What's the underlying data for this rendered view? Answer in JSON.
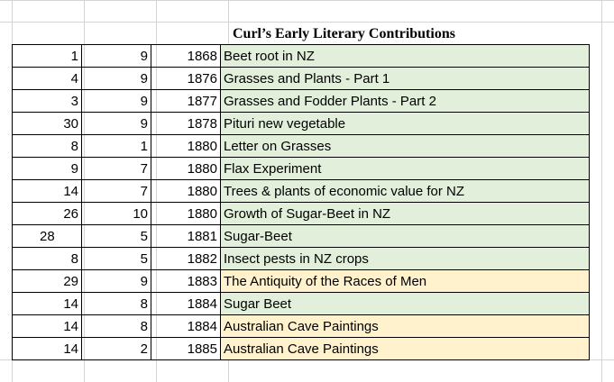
{
  "title": "Curl’s Early Literary Contributions",
  "colors": {
    "green_fill": "#e2efda",
    "yellow_fill": "#fff2cc",
    "gridline": "#d4d4d4"
  },
  "rows": [
    {
      "day": "1",
      "month": "9",
      "year": "1868",
      "title": "Beet root in NZ",
      "fill": "green"
    },
    {
      "day": "4",
      "month": "9",
      "year": "1876",
      "title": "Grasses and Plants - Part 1",
      "fill": "green"
    },
    {
      "day": "3",
      "month": "9",
      "year": "1877",
      "title": "Grasses and Fodder Plants - Part 2",
      "fill": "green"
    },
    {
      "day": "30",
      "month": "9",
      "year": "1878",
      "title": "Pituri new vegetable",
      "fill": "green"
    },
    {
      "day": "8",
      "month": "1",
      "year": "1880",
      "title": "Letter on Grasses",
      "fill": "green"
    },
    {
      "day": "9",
      "month": "7",
      "year": "1880",
      "title": "Flax Experiment",
      "fill": "green"
    },
    {
      "day": "14",
      "month": "7",
      "year": "1880",
      "title": "Trees & plants of economic value for NZ",
      "fill": "green"
    },
    {
      "day": "26",
      "month": "10",
      "year": "1880",
      "title": "Growth of Sugar-Beet in NZ",
      "fill": "green"
    },
    {
      "day": "28",
      "month": "5",
      "year": "1881",
      "title": "Sugar-Beet",
      "fill": "green",
      "day_align": "left"
    },
    {
      "day": "8",
      "month": "5",
      "year": "1882",
      "title": "Insect pests in NZ crops",
      "fill": "green"
    },
    {
      "day": "29",
      "month": "9",
      "year": "1883",
      "title": "The Antiquity of the Races of Men",
      "fill": "yellow"
    },
    {
      "day": "14",
      "month": "8",
      "year": "1884",
      "title": "Sugar Beet",
      "fill": "green"
    },
    {
      "day": "14",
      "month": "8",
      "year": "1884",
      "title": "Australian Cave Paintings",
      "fill": "yellow"
    },
    {
      "day": "14",
      "month": "2",
      "year": "1885",
      "title": "Australian Cave Paintings",
      "fill": "yellow"
    }
  ]
}
